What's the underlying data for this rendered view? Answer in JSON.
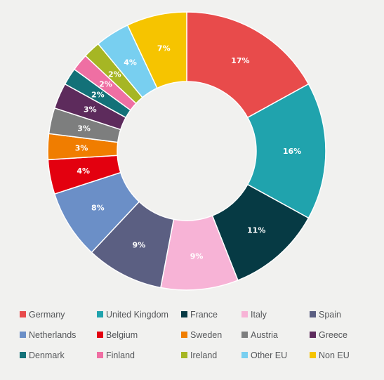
{
  "chart_data": {
    "type": "pie",
    "title": "",
    "legend_position": "bottom",
    "slices": [
      {
        "label": "Germany",
        "value": 17,
        "text": "17%",
        "color": "#e84b4b"
      },
      {
        "label": "United Kingdom",
        "value": 16,
        "text": "16%",
        "color": "#20a3ad"
      },
      {
        "label": "France",
        "value": 11,
        "text": "11%",
        "color": "#063a44"
      },
      {
        "label": "Italy",
        "value": 9,
        "text": "9%",
        "color": "#f7b3d6"
      },
      {
        "label": "Spain",
        "value": 9,
        "text": "9%",
        "color": "#5b5f82"
      },
      {
        "label": "Netherlands",
        "value": 8,
        "text": "8%",
        "color": "#6b8fc7"
      },
      {
        "label": "Belgium",
        "value": 4,
        "text": "4%",
        "color": "#e3000f"
      },
      {
        "label": "Sweden",
        "value": 3,
        "text": "3%",
        "color": "#f07d00"
      },
      {
        "label": "Austria",
        "value": 3,
        "text": "3%",
        "color": "#7d7e7e"
      },
      {
        "label": "Greece",
        "value": 3,
        "text": "3%",
        "color": "#5d2b5c"
      },
      {
        "label": "Denmark",
        "value": 2,
        "text": "2%",
        "color": "#137178"
      },
      {
        "label": "Finland",
        "value": 2,
        "text": "2%",
        "color": "#ef6fa3"
      },
      {
        "label": "Ireland",
        "value": 2,
        "text": "2%",
        "color": "#a6b624"
      },
      {
        "label": "Other EU",
        "value": 4,
        "text": "4%",
        "color": "#78cff0"
      },
      {
        "label": "Non EU",
        "value": 7,
        "text": "7%",
        "color": "#f6c400"
      }
    ]
  }
}
